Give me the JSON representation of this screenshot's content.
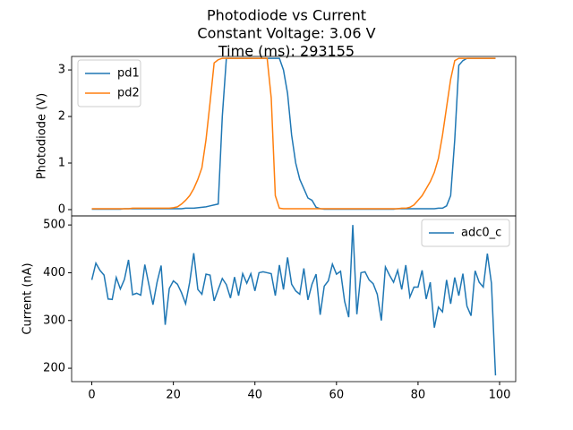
{
  "chart_data": [
    {
      "type": "line",
      "title": [
        "Photodiode vs Current",
        "Constant Voltage: 3.06 V",
        "Time (ms): 293155"
      ],
      "ylabel": "Photodiode (V)",
      "x": [
        0,
        1,
        2,
        3,
        4,
        5,
        6,
        7,
        8,
        9,
        10,
        11,
        12,
        13,
        14,
        15,
        16,
        17,
        18,
        19,
        20,
        21,
        22,
        23,
        24,
        25,
        26,
        27,
        28,
        29,
        30,
        31,
        32,
        33,
        34,
        35,
        36,
        37,
        38,
        39,
        40,
        41,
        42,
        43,
        44,
        45,
        46,
        47,
        48,
        49,
        50,
        51,
        52,
        53,
        54,
        55,
        56,
        57,
        58,
        59,
        60,
        61,
        62,
        63,
        64,
        65,
        66,
        67,
        68,
        69,
        70,
        71,
        72,
        73,
        74,
        75,
        76,
        77,
        78,
        79,
        80,
        81,
        82,
        83,
        84,
        85,
        86,
        87,
        88,
        89,
        90,
        91,
        92,
        93,
        94,
        95,
        96,
        97,
        98,
        99
      ],
      "series": [
        {
          "name": "pd1",
          "color": "#1f77b4",
          "values": [
            0.01,
            0.01,
            0.01,
            0.01,
            0.01,
            0.01,
            0.01,
            0.01,
            0.02,
            0.02,
            0.02,
            0.02,
            0.02,
            0.02,
            0.02,
            0.02,
            0.02,
            0.02,
            0.02,
            0.02,
            0.02,
            0.02,
            0.02,
            0.03,
            0.03,
            0.03,
            0.04,
            0.05,
            0.06,
            0.08,
            0.1,
            0.12,
            2.0,
            3.25,
            3.25,
            3.25,
            3.25,
            3.25,
            3.25,
            3.25,
            3.25,
            3.25,
            3.25,
            3.25,
            3.25,
            3.25,
            3.25,
            3.0,
            2.5,
            1.6,
            1.0,
            0.65,
            0.45,
            0.25,
            0.2,
            0.05,
            0.02,
            0.01,
            0.01,
            0.01,
            0.01,
            0.01,
            0.01,
            0.01,
            0.01,
            0.01,
            0.01,
            0.01,
            0.01,
            0.01,
            0.01,
            0.01,
            0.01,
            0.01,
            0.01,
            0.02,
            0.02,
            0.02,
            0.02,
            0.02,
            0.02,
            0.02,
            0.02,
            0.02,
            0.02,
            0.03,
            0.03,
            0.08,
            0.3,
            1.5,
            3.1,
            3.2,
            3.25,
            3.25,
            3.25,
            3.25,
            3.25,
            3.25,
            3.25,
            3.25
          ]
        },
        {
          "name": "pd2",
          "color": "#ff7f0e",
          "values": [
            0.02,
            0.02,
            0.02,
            0.02,
            0.02,
            0.02,
            0.02,
            0.02,
            0.02,
            0.02,
            0.03,
            0.03,
            0.03,
            0.03,
            0.03,
            0.03,
            0.03,
            0.03,
            0.03,
            0.03,
            0.04,
            0.06,
            0.12,
            0.2,
            0.3,
            0.45,
            0.65,
            0.9,
            1.5,
            2.3,
            3.15,
            3.22,
            3.25,
            3.25,
            3.25,
            3.25,
            3.25,
            3.25,
            3.25,
            3.25,
            3.25,
            3.25,
            3.25,
            3.25,
            2.4,
            0.3,
            0.03,
            0.02,
            0.02,
            0.02,
            0.02,
            0.02,
            0.02,
            0.02,
            0.02,
            0.02,
            0.02,
            0.02,
            0.02,
            0.02,
            0.02,
            0.02,
            0.02,
            0.02,
            0.02,
            0.02,
            0.02,
            0.02,
            0.02,
            0.02,
            0.02,
            0.02,
            0.02,
            0.02,
            0.02,
            0.02,
            0.03,
            0.03,
            0.05,
            0.1,
            0.2,
            0.3,
            0.45,
            0.6,
            0.8,
            1.1,
            1.6,
            2.2,
            2.8,
            3.2,
            3.25,
            3.25,
            3.25,
            3.25,
            3.25,
            3.25,
            3.25,
            3.25,
            3.25,
            3.25
          ]
        }
      ],
      "xlim": [
        -4.95,
        103.95
      ],
      "ylim": [
        -0.135,
        3.29
      ],
      "yticks": [
        0,
        1,
        2,
        3
      ],
      "legend": "upper left"
    },
    {
      "type": "line",
      "ylabel": "Current (nA)",
      "x": [
        0,
        1,
        2,
        3,
        4,
        5,
        6,
        7,
        8,
        9,
        10,
        11,
        12,
        13,
        14,
        15,
        16,
        17,
        18,
        19,
        20,
        21,
        22,
        23,
        24,
        25,
        26,
        27,
        28,
        29,
        30,
        31,
        32,
        33,
        34,
        35,
        36,
        37,
        38,
        39,
        40,
        41,
        42,
        43,
        44,
        45,
        46,
        47,
        48,
        49,
        50,
        51,
        52,
        53,
        54,
        55,
        56,
        57,
        58,
        59,
        60,
        61,
        62,
        63,
        64,
        65,
        66,
        67,
        68,
        69,
        70,
        71,
        72,
        73,
        74,
        75,
        76,
        77,
        78,
        79,
        80,
        81,
        82,
        83,
        84,
        85,
        86,
        87,
        88,
        89,
        90,
        91,
        92,
        93,
        94,
        95,
        96,
        97,
        98,
        99
      ],
      "series": [
        {
          "name": "adc0_c",
          "color": "#1f77b4",
          "values": [
            385,
            420,
            405,
            395,
            345,
            344,
            390,
            366,
            386,
            427,
            354,
            357,
            353,
            417,
            375,
            333,
            380,
            415,
            291,
            367,
            383,
            376,
            358,
            335,
            380,
            441,
            365,
            355,
            397,
            395,
            341,
            365,
            388,
            375,
            347,
            391,
            352,
            398,
            378,
            398,
            362,
            400,
            402,
            400,
            398,
            352,
            416,
            365,
            432,
            376,
            362,
            355,
            409,
            343,
            376,
            397,
            312,
            372,
            383,
            418,
            397,
            403,
            340,
            307,
            500,
            313,
            400,
            402,
            385,
            377,
            355,
            300,
            412,
            395,
            380,
            405,
            365,
            416,
            349,
            370,
            370,
            405,
            345,
            380,
            285,
            328,
            318,
            385,
            335,
            390,
            352,
            398,
            330,
            310,
            404,
            380,
            370,
            440,
            378,
            185
          ]
        }
      ],
      "xlim": [
        -4.95,
        103.95
      ],
      "xticks": [
        0,
        20,
        40,
        60,
        80,
        100
      ],
      "ylim": [
        172,
        519
      ],
      "yticks": [
        200,
        300,
        400,
        500
      ],
      "legend": "upper right"
    }
  ]
}
